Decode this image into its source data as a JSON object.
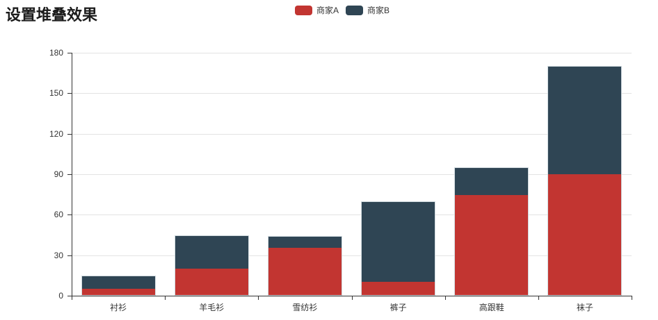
{
  "chart_data": {
    "type": "bar",
    "stacked": true,
    "title": "设置堆叠效果",
    "categories": [
      "衬衫",
      "羊毛衫",
      "雪纺衫",
      "裤子",
      "高跟鞋",
      "袜子"
    ],
    "series": [
      {
        "name": "商家A",
        "color": "#c23531",
        "values": [
          5,
          20,
          36,
          10,
          75,
          90
        ]
      },
      {
        "name": "商家B",
        "color": "#2f4554",
        "values": [
          10,
          25,
          8,
          60,
          20,
          80
        ]
      }
    ],
    "stacked_totals": [
      15,
      45,
      44,
      70,
      95,
      170
    ],
    "xlabel": "",
    "ylabel": "",
    "ylim": [
      0,
      180
    ],
    "yticks": [
      0,
      30,
      60,
      90,
      120,
      150,
      180
    ],
    "grid": true,
    "legend_position": "top-center"
  },
  "legend": {
    "items": [
      {
        "label": "商家A",
        "color": "#c23531"
      },
      {
        "label": "商家B",
        "color": "#2f4554"
      }
    ]
  },
  "colors": {
    "series_a": "#c23531",
    "series_b": "#2f4554",
    "axis": "#333333",
    "grid": "#e3e3e3",
    "text": "#333333",
    "bar_border": "#ccd7dd",
    "background": "#ffffff"
  }
}
